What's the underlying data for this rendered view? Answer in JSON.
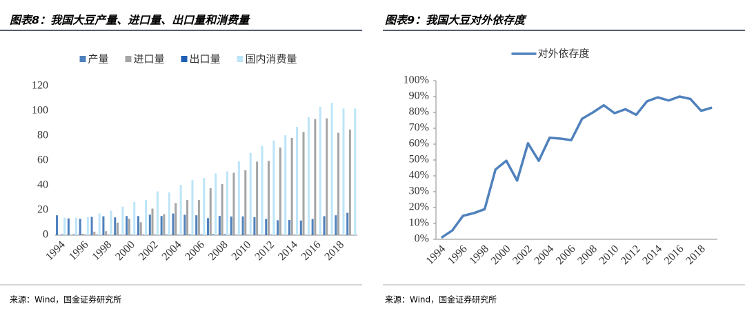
{
  "chart_data": [
    {
      "type": "bar",
      "title": "图表8：我国大豆产量、进口量、出口量和消费量",
      "source": "来源：Wind，国金证券研究所",
      "categories": [
        "1994",
        null,
        "1996",
        null,
        "1998",
        null,
        "2000",
        null,
        "2002",
        null,
        "2004",
        null,
        "2006",
        null,
        "2008",
        null,
        "2010",
        null,
        "2012",
        null,
        "2014",
        null,
        "2016",
        null,
        "2018",
        null
      ],
      "series": [
        {
          "name": "产量",
          "color": "#4f81bd",
          "values": [
            16,
            13.5,
            13.2,
            14.7,
            15.2,
            14.3,
            15.4,
            15.4,
            16.5,
            15.4,
            17.4,
            16.4,
            16,
            13.7,
            15.5,
            15,
            15.1,
            14.5,
            13,
            12,
            12.2,
            11.8,
            13,
            15.3,
            16,
            18
          ]
        },
        {
          "name": "进口量",
          "color": "#a5a5a5",
          "values": [
            0.2,
            0.3,
            1.1,
            2.8,
            3.2,
            10.1,
            13.2,
            10.4,
            21.4,
            16.9,
            25.8,
            28.3,
            28.3,
            37.8,
            41.1,
            50.3,
            52.3,
            59.2,
            59.9,
            70.6,
            78.4,
            83.2,
            93.5,
            94.1,
            82.5,
            85.1
          ]
        },
        {
          "name": "出口量",
          "color": "#1f5fb4",
          "values": [
            0.4,
            0.4,
            0.2,
            0.2,
            0.2,
            0.2,
            0.2,
            0.3,
            0.3,
            0.3,
            0.3,
            0.4,
            0.4,
            0.5,
            0.5,
            0.2,
            0.2,
            0.2,
            0.3,
            0.2,
            0.2,
            0.1,
            0.1,
            0.1,
            0.1,
            0.1
          ]
        },
        {
          "name": "国内消费量",
          "color": "#bde5f8",
          "values": [
            14,
            14,
            14.4,
            17.5,
            19.7,
            22.9,
            26.7,
            28.3,
            35.3,
            34.4,
            40.4,
            44.4,
            46.1,
            49.8,
            51.4,
            59.4,
            66.3,
            72,
            76.2,
            80.6,
            87.2,
            95,
            103.5,
            106.5,
            102,
            102
          ]
        }
      ],
      "ylim": [
        0,
        120
      ],
      "yticks": [
        0,
        20,
        40,
        60,
        80,
        100,
        120
      ],
      "grid": false
    },
    {
      "type": "line",
      "title": "图表9：我国大豆对外依存度",
      "source": "来源：Wind，国金证券研究所",
      "categories": [
        "1994",
        null,
        "1996",
        null,
        "1998",
        null,
        "2000",
        null,
        "2002",
        null,
        "2004",
        null,
        "2006",
        null,
        "2008",
        null,
        "2010",
        null,
        "2012",
        null,
        "2014",
        null,
        "2016",
        null,
        "2018",
        null
      ],
      "series": [
        {
          "name": "对外依存度",
          "color": "#4f81bd",
          "values": [
            1,
            5.5,
            14.8,
            16.5,
            19,
            44,
            49.5,
            37,
            60.5,
            49.5,
            64,
            63.5,
            62.5,
            76,
            80,
            84.5,
            79.5,
            82,
            78.5,
            87,
            89.5,
            87.5,
            90,
            88.5,
            81,
            83
          ]
        }
      ],
      "ylim": [
        0,
        100
      ],
      "yticks": [
        {
          "value": 0,
          "label": "0%"
        },
        {
          "value": 10,
          "label": "10%"
        },
        {
          "value": 20,
          "label": "20%"
        },
        {
          "value": 30,
          "label": "30%"
        },
        {
          "value": 40,
          "label": "40%"
        },
        {
          "value": 50,
          "label": "50%"
        },
        {
          "value": 60,
          "label": "60%"
        },
        {
          "value": 70,
          "label": "70%"
        },
        {
          "value": 80,
          "label": "80%"
        },
        {
          "value": 90,
          "label": "90%"
        },
        {
          "value": 100,
          "label": "100%"
        }
      ],
      "grid": false
    }
  ]
}
